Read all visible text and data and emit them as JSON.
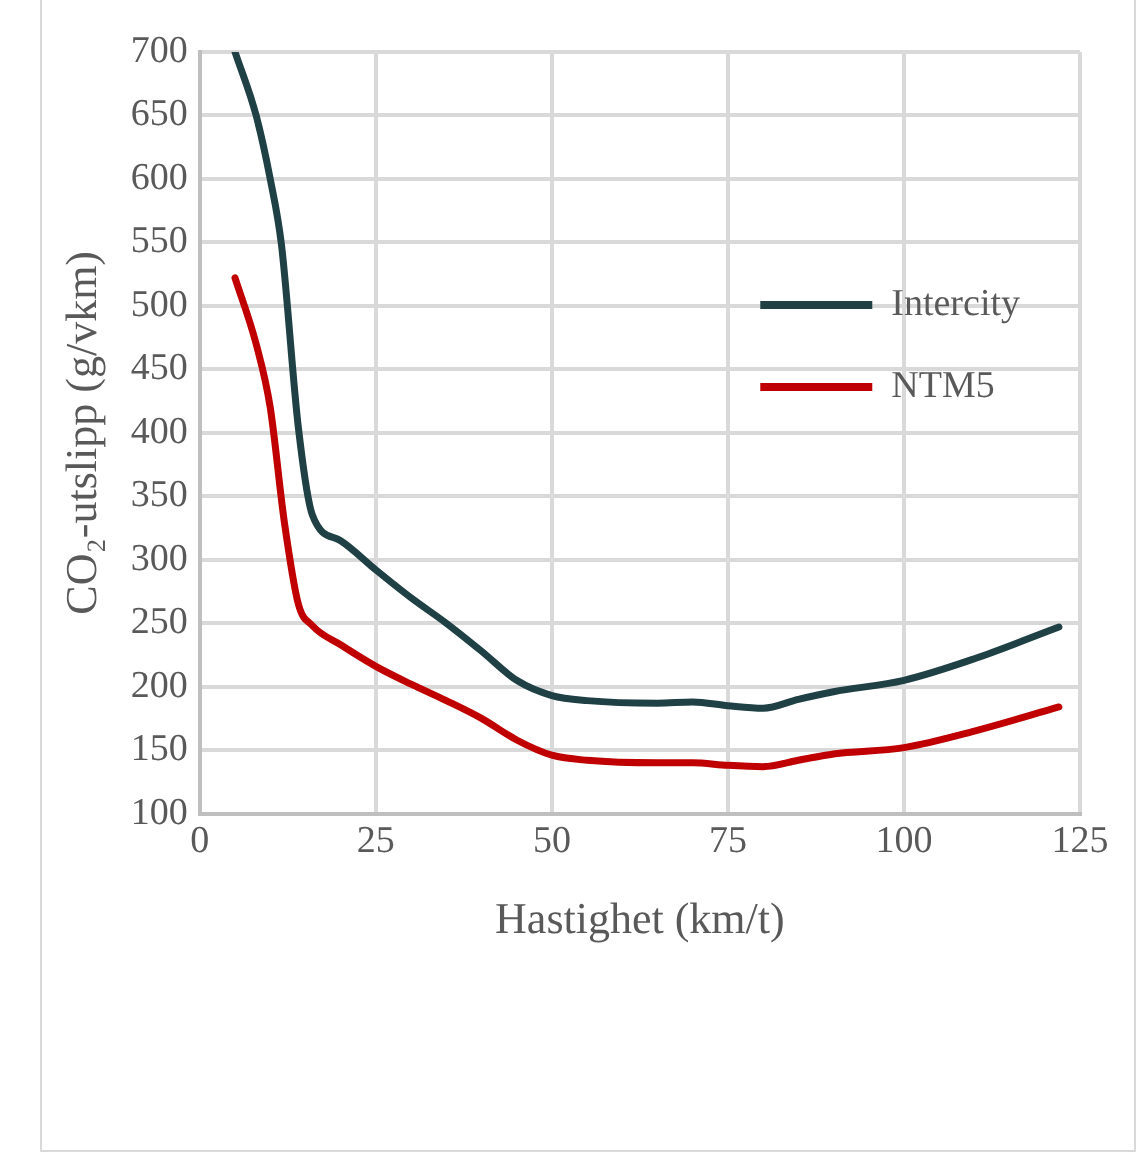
{
  "chart_data": {
    "type": "line",
    "xlabel": "Hastighet (km/t)",
    "ylabel": "CO₂-utslipp (g/vkm)",
    "xlim": [
      0,
      125
    ],
    "xticks": [
      0,
      25,
      50,
      75,
      100,
      125
    ],
    "ylim": [
      100,
      700
    ],
    "yticks": [
      100,
      150,
      200,
      250,
      300,
      350,
      400,
      450,
      500,
      550,
      600,
      650,
      700
    ],
    "grid": true,
    "legend": "top right",
    "marker": "none",
    "line_style": "solid",
    "series": [
      {
        "name": "Intercity",
        "color": "#1f4045",
        "x": [
          5,
          8,
          10,
          11.6,
          14,
          16,
          20,
          25,
          30,
          35,
          40,
          45,
          50,
          55,
          65,
          70,
          75,
          80,
          85,
          90,
          100,
          110,
          122
        ],
        "values": [
          700,
          650,
          600,
          548,
          404,
          335,
          315,
          292,
          270,
          250,
          228,
          205,
          193,
          189,
          187,
          188,
          185,
          183,
          190,
          196,
          205,
          222,
          247
        ]
      },
      {
        "name": "NTM5",
        "color": "#c00000",
        "x": [
          5,
          8,
          10,
          12,
          14,
          16,
          20,
          25,
          30,
          35,
          40,
          45,
          50,
          55,
          65,
          70,
          75,
          80,
          85,
          90,
          100,
          110,
          122
        ],
        "values": [
          522,
          470,
          420,
          330,
          265,
          248,
          233,
          216,
          202,
          189,
          175,
          158,
          146,
          142,
          140,
          140,
          138,
          137,
          142,
          147,
          152,
          165,
          184
        ]
      }
    ]
  }
}
